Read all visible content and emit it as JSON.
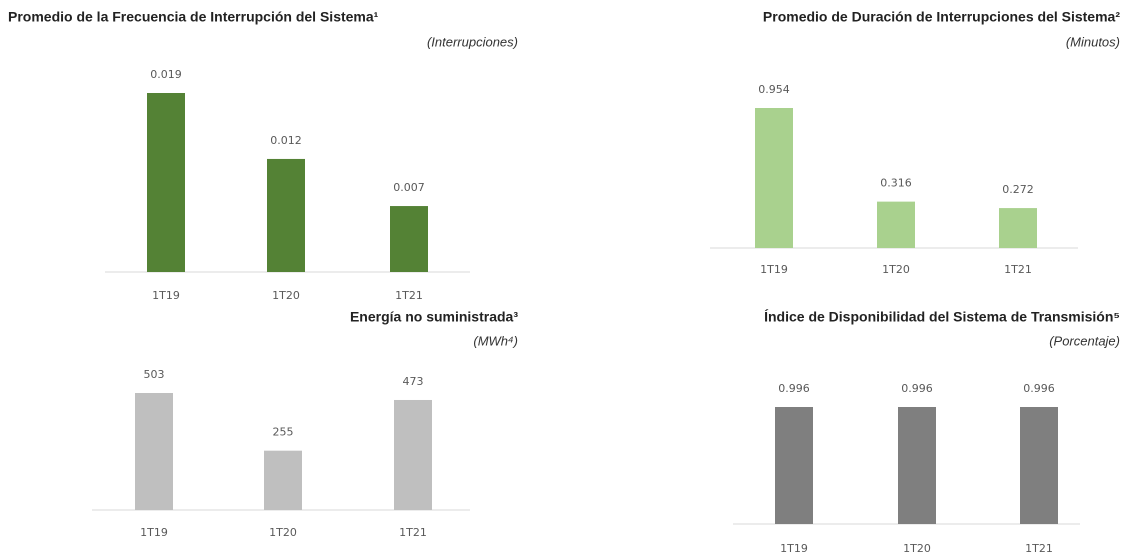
{
  "chart_data": [
    {
      "type": "bar",
      "title": "Promedio de la Frecuencia de Interrupción del Sistema¹",
      "subtitle": "(Interrupciones)",
      "categories": [
        "1T19",
        "1T20",
        "1T21"
      ],
      "values": [
        0.019,
        0.012,
        0.007
      ],
      "color": "#548235"
    },
    {
      "type": "bar",
      "title": "Promedio de Duración de Interrupciones del Sistema²",
      "subtitle": "(Minutos)",
      "categories": [
        "1T19",
        "1T20",
        "1T21"
      ],
      "values": [
        0.954,
        0.316,
        0.272
      ],
      "color": "#a9d18e"
    },
    {
      "type": "bar",
      "title": "Energía no suministrada³",
      "subtitle": "(MWh⁴)",
      "categories": [
        "1T19",
        "1T20",
        "1T21"
      ],
      "values": [
        503,
        255,
        473
      ],
      "color": "#bfbfbf"
    },
    {
      "type": "bar",
      "title": "Índice de Disponibilidad del Sistema de Transmisión⁵",
      "subtitle": "(Porcentaje)",
      "categories": [
        "1T19",
        "1T20",
        "1T21"
      ],
      "values": [
        0.996,
        0.996,
        0.996
      ],
      "color": "#7f7f7f"
    }
  ]
}
